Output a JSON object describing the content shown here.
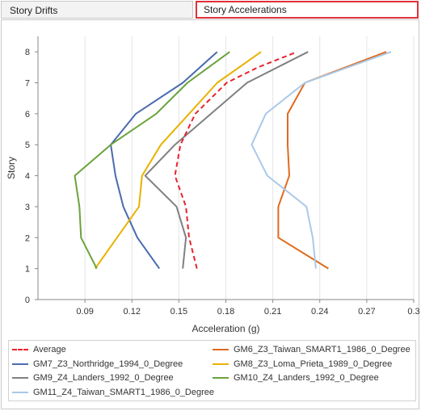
{
  "tabs": [
    {
      "label": "Story Drifts",
      "active": false
    },
    {
      "label": "Story Accelerations",
      "active": true
    }
  ],
  "chart_data": {
    "type": "line",
    "xlabel": "Acceleration (g)",
    "ylabel": "Story",
    "xlim": [
      0.06,
      0.3
    ],
    "ylim": [
      0,
      8.5
    ],
    "x_ticks": [
      0.09,
      0.12,
      0.15,
      0.18,
      0.21,
      0.24,
      0.27,
      0.3
    ],
    "x_tick_labels": [
      "0.09",
      "0.12",
      "0.15",
      "0.18",
      "0.21",
      "0.24",
      "0.27",
      "0.3"
    ],
    "y_ticks": [
      0,
      1,
      2,
      3,
      4,
      5,
      6,
      7,
      8
    ],
    "grid": "vertical",
    "legend_position": "bottom",
    "series": [
      {
        "name": "Average",
        "color": "#e8222c",
        "dashed": true,
        "points": [
          [
            0.1615,
            1
          ],
          [
            0.1565,
            2
          ],
          [
            0.1545,
            3
          ],
          [
            0.1475,
            4
          ],
          [
            0.151,
            5
          ],
          [
            0.1605,
            6
          ],
          [
            0.1805,
            7
          ],
          [
            0.2005,
            7.5
          ],
          [
            0.2255,
            8
          ]
        ]
      },
      {
        "name": "GM6_Z3_Taiwan_SMART1_1986_0_Degree",
        "color": "#e06a1e",
        "dashed": false,
        "points": [
          [
            0.2455,
            1
          ],
          [
            0.2135,
            2
          ],
          [
            0.2135,
            3
          ],
          [
            0.2205,
            4
          ],
          [
            0.2195,
            5
          ],
          [
            0.2195,
            6
          ],
          [
            0.2305,
            7
          ],
          [
            0.2825,
            8
          ]
        ]
      },
      {
        "name": "GM7_Z3_Northridge_1994_0_Degree",
        "color": "#4a6baf",
        "dashed": false,
        "points": [
          [
            0.1375,
            1
          ],
          [
            0.1235,
            2
          ],
          [
            0.1145,
            3
          ],
          [
            0.1095,
            4
          ],
          [
            0.1065,
            5
          ],
          [
            0.1225,
            6
          ],
          [
            0.1525,
            7
          ],
          [
            0.1745,
            8
          ]
        ]
      },
      {
        "name": "GM8_Z3_Loma_Prieta_1989_0_Degree",
        "color": "#e8b200",
        "dashed": false,
        "points": [
          [
            0.0965,
            1
          ],
          [
            0.1105,
            2
          ],
          [
            0.1245,
            3
          ],
          [
            0.1265,
            4
          ],
          [
            0.1385,
            5
          ],
          [
            0.1565,
            6
          ],
          [
            0.1745,
            7
          ],
          [
            0.2025,
            8
          ]
        ]
      },
      {
        "name": "GM9_Z4_Landers_1992_0_Degree",
        "color": "#808080",
        "dashed": false,
        "points": [
          [
            0.1525,
            1
          ],
          [
            0.1545,
            2
          ],
          [
            0.1485,
            3
          ],
          [
            0.1285,
            4
          ],
          [
            0.1475,
            5
          ],
          [
            0.1705,
            6
          ],
          [
            0.1935,
            7
          ],
          [
            0.2325,
            8
          ]
        ]
      },
      {
        "name": "GM10_Z4_Landers_1992_0_Degree",
        "color": "#6aa33c",
        "dashed": false,
        "points": [
          [
            0.0975,
            1
          ],
          [
            0.0875,
            2
          ],
          [
            0.0865,
            3
          ],
          [
            0.0835,
            4
          ],
          [
            0.1065,
            5
          ],
          [
            0.1355,
            6
          ],
          [
            0.1555,
            7
          ],
          [
            0.1825,
            8
          ]
        ]
      },
      {
        "name": "GM11_Z4_Taiwan_SMART1_1986_0_Degree",
        "color": "#a9c9e8",
        "dashed": false,
        "points": [
          [
            0.2375,
            1
          ],
          [
            0.2355,
            2
          ],
          [
            0.2315,
            3
          ],
          [
            0.2065,
            4
          ],
          [
            0.1965,
            5
          ],
          [
            0.2055,
            6
          ],
          [
            0.2305,
            7
          ],
          [
            0.2855,
            8
          ]
        ]
      }
    ]
  },
  "legend": {
    "left": [
      "Average",
      "GM7_Z3_Northridge_1994_0_Degree",
      "GM9_Z4_Landers_1992_0_Degree",
      "GM11_Z4_Taiwan_SMART1_1986_0_Degree"
    ],
    "right": [
      "GM6_Z3_Taiwan_SMART1_1986_0_Degree",
      "GM8_Z3_Loma_Prieta_1989_0_Degree",
      "GM10_Z4_Landers_1992_0_Degree"
    ]
  }
}
